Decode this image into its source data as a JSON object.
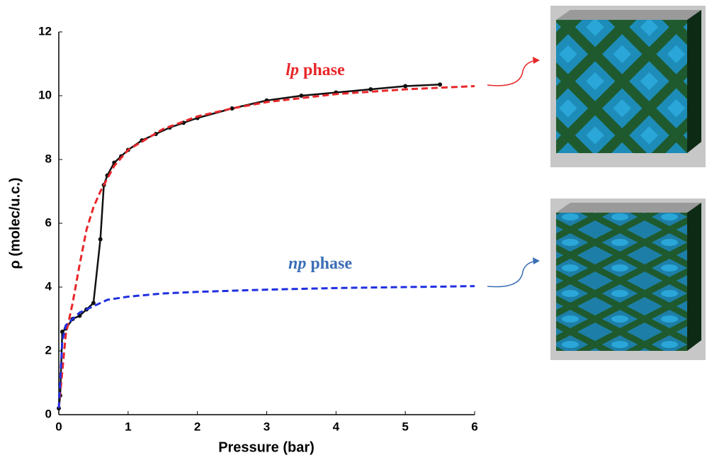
{
  "chart_data": {
    "type": "line",
    "xlabel": "Pressure (bar)",
    "ylabel": "ρ (molec/u.c.)",
    "xlim": [
      0,
      6
    ],
    "xticks": [
      0,
      1,
      2,
      3,
      4,
      5,
      6
    ],
    "ylim": [
      0,
      12
    ],
    "yticks": [
      0,
      2,
      4,
      6,
      8,
      10,
      12
    ],
    "grid": false,
    "annotations": [
      {
        "italic": "lp",
        "text": "phase",
        "color": "#e8262a"
      },
      {
        "italic": "np",
        "text": "phase",
        "color": "#3b6fb6"
      }
    ],
    "series": [
      {
        "color": "#111111",
        "style": "solid",
        "markers": true,
        "x": [
          0,
          0.02,
          0.05,
          0.1,
          0.2,
          0.3,
          0.4,
          0.5,
          0.6,
          0.65,
          0.7,
          0.8,
          0.9,
          1.0,
          1.2,
          1.4,
          1.6,
          1.8,
          2.0,
          2.5,
          3.0,
          3.5,
          4.0,
          4.5,
          5.0,
          5.5
        ],
        "values": [
          0.2,
          0.6,
          2.6,
          2.7,
          3.0,
          3.1,
          3.3,
          3.5,
          5.5,
          7.2,
          7.5,
          7.9,
          8.1,
          8.3,
          8.6,
          8.8,
          9.0,
          9.15,
          9.3,
          9.6,
          9.85,
          10.0,
          10.1,
          10.2,
          10.3,
          10.35
        ]
      },
      {
        "color": "#e8262a",
        "style": "dashed",
        "markers": false,
        "x": [
          0,
          0.1,
          0.2,
          0.3,
          0.4,
          0.5,
          0.6,
          0.8,
          1.0,
          1.5,
          2.0,
          2.5,
          3.0,
          4.0,
          5.0,
          6.0
        ],
        "values": [
          0.2,
          2.5,
          3.5,
          4.7,
          5.8,
          6.5,
          7.0,
          7.8,
          8.3,
          8.95,
          9.35,
          9.6,
          9.8,
          10.05,
          10.2,
          10.3
        ]
      },
      {
        "color": "#1f2fe0",
        "style": "dashed",
        "markers": false,
        "x": [
          0,
          0.05,
          0.1,
          0.2,
          0.3,
          0.5,
          0.7,
          1.0,
          1.5,
          2.0,
          3.0,
          4.0,
          5.0,
          6.0
        ],
        "values": [
          0.2,
          2.3,
          2.8,
          3.0,
          3.2,
          3.4,
          3.6,
          3.7,
          3.8,
          3.85,
          3.92,
          3.97,
          4.0,
          4.03
        ]
      }
    ]
  }
}
